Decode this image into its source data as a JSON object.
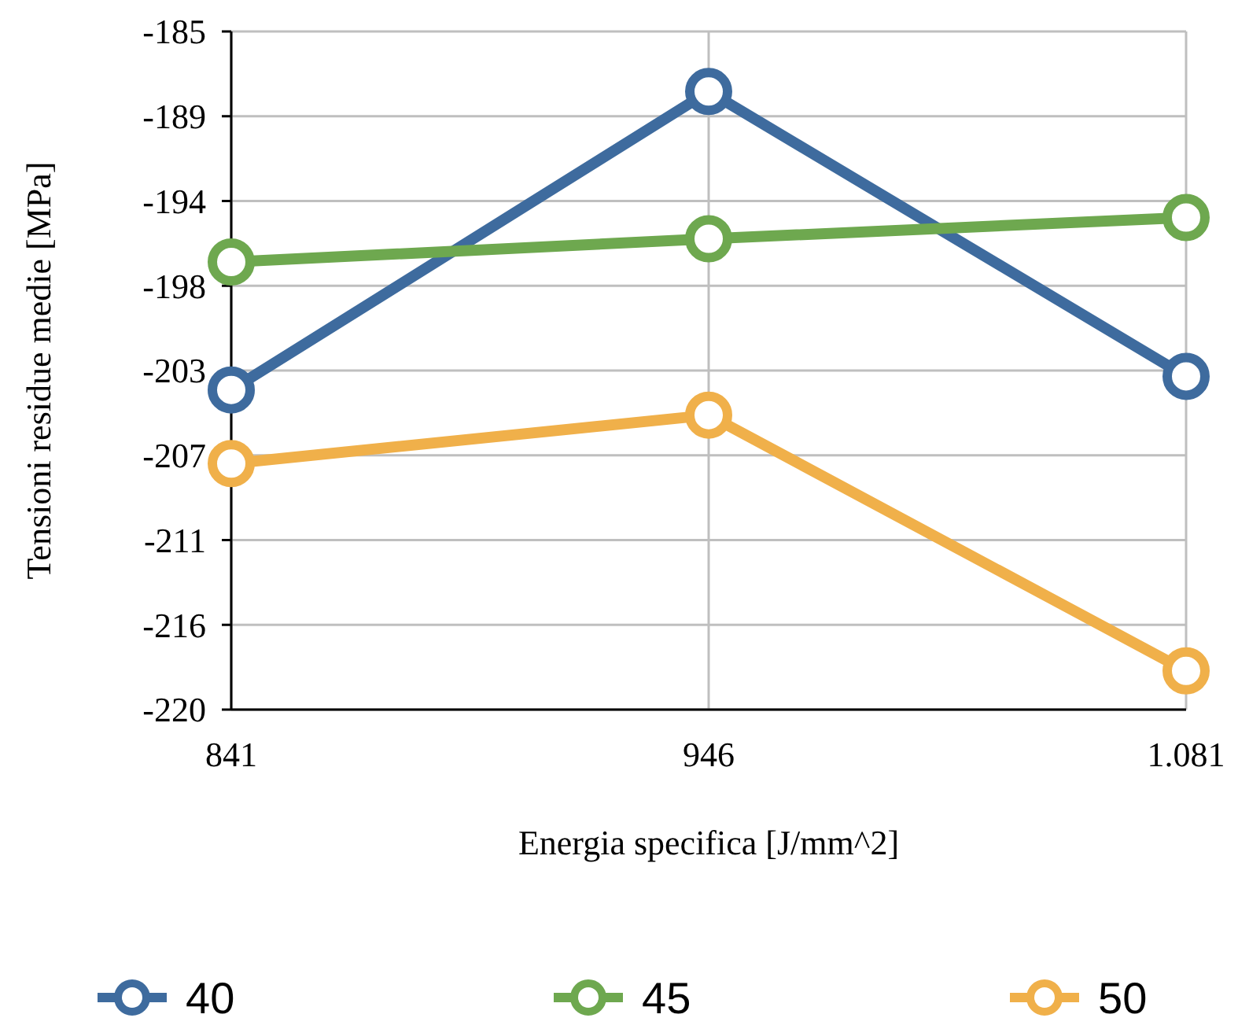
{
  "chart_data": {
    "type": "line",
    "xlabel": "Energia specifica [J/mm^2]",
    "ylabel": "Tensioni residue medie [MPa]",
    "categories": [
      "841",
      "946",
      "1.081"
    ],
    "series": [
      {
        "name": "40",
        "color": "#3e6b9e",
        "values": [
          -203.5,
          -188.1,
          -202.8
        ]
      },
      {
        "name": "45",
        "color": "#6ea84f",
        "values": [
          -196.9,
          -195.7,
          -194.6
        ]
      },
      {
        "name": "50",
        "color": "#f0b04a",
        "values": [
          -207.3,
          -204.8,
          -218.0
        ]
      }
    ],
    "ylim": [
      -220,
      -185
    ],
    "yticks": [
      {
        "value": -185,
        "label": "-185"
      },
      {
        "value": -189.375,
        "label": "-189"
      },
      {
        "value": -193.75,
        "label": "-194"
      },
      {
        "value": -198.125,
        "label": "-198"
      },
      {
        "value": -202.5,
        "label": "-203"
      },
      {
        "value": -206.875,
        "label": "-207"
      },
      {
        "value": -211.25,
        "label": "-211"
      },
      {
        "value": -215.625,
        "label": "-216"
      },
      {
        "value": -220,
        "label": "-220"
      }
    ],
    "grid": true,
    "legend": "bottom",
    "marker": "circle",
    "line_style": "solid"
  }
}
